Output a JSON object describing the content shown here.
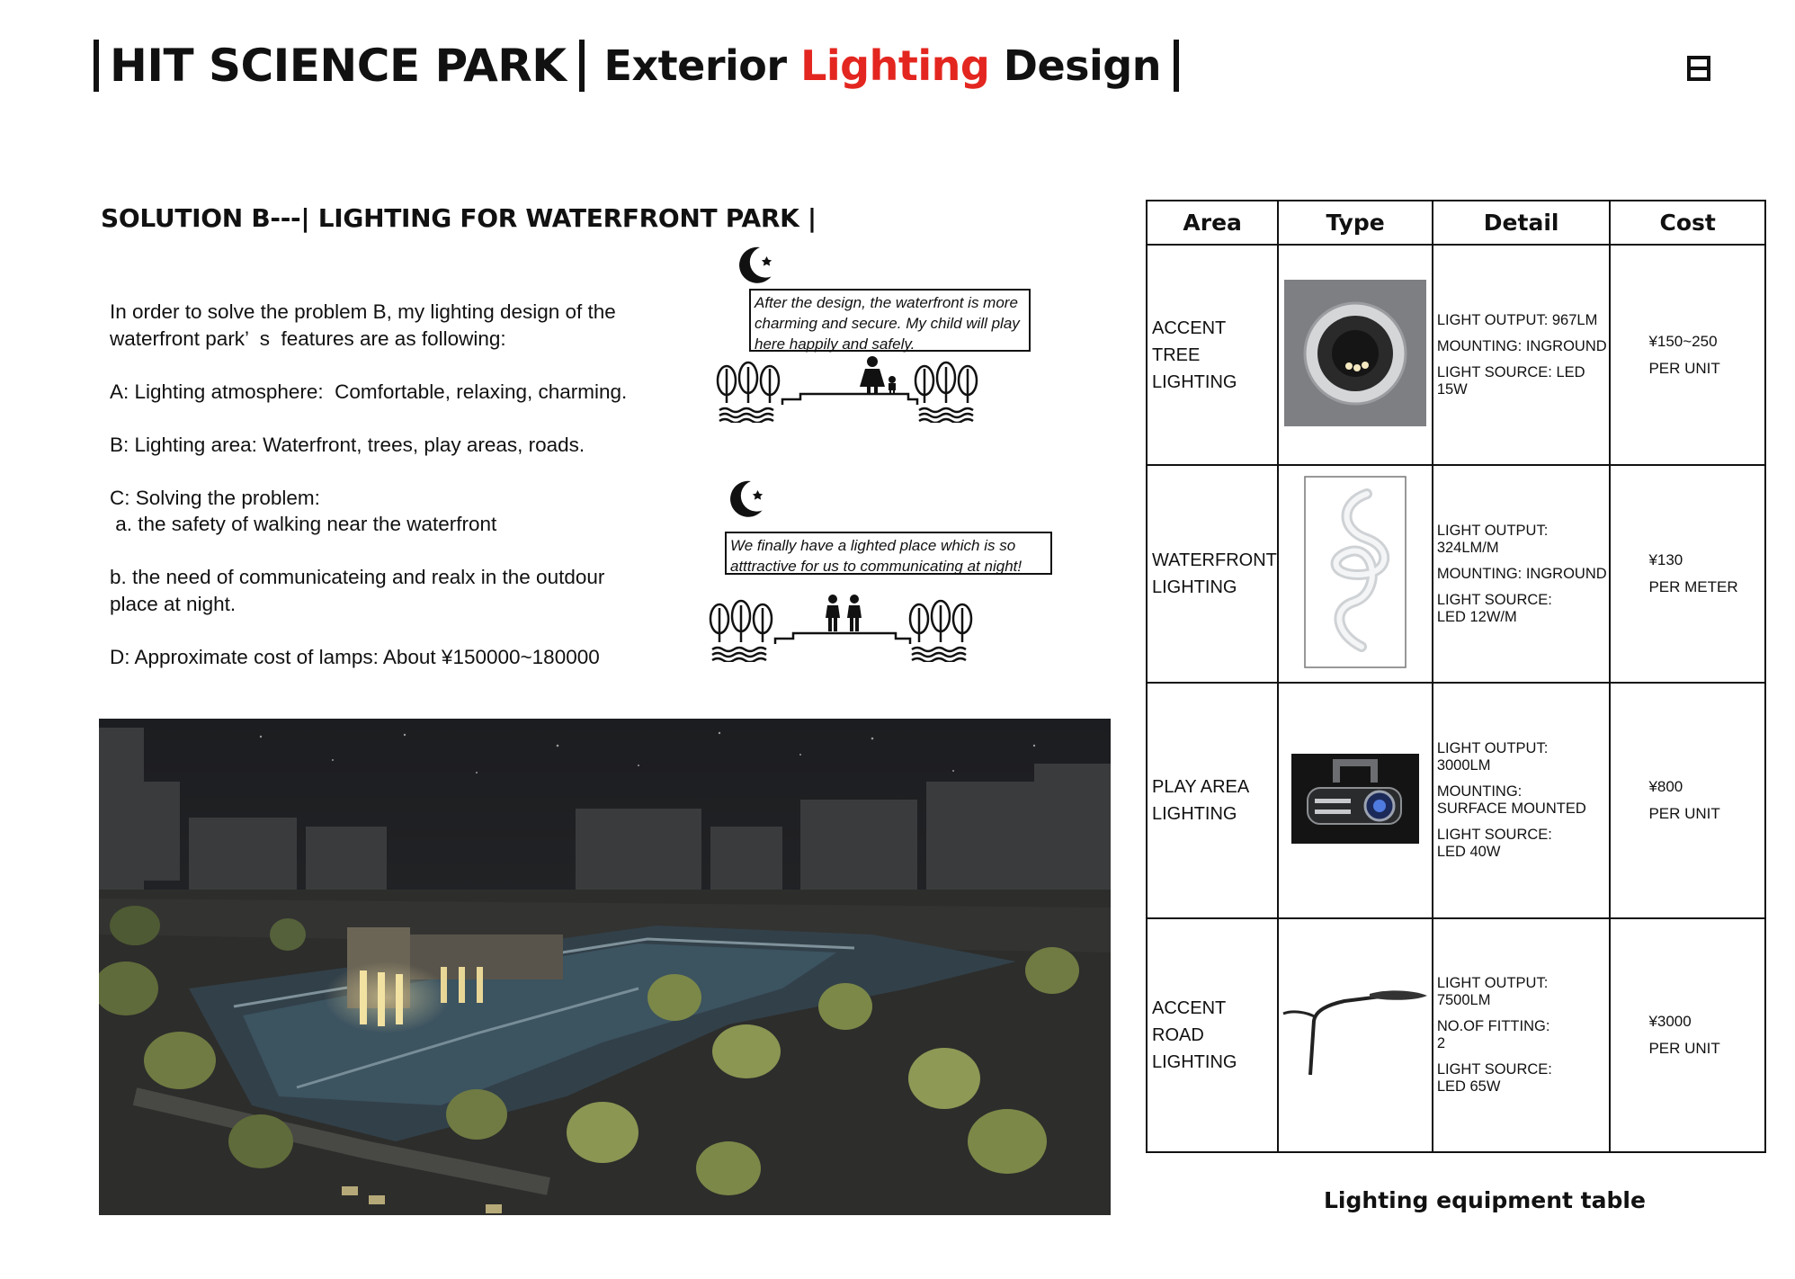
{
  "header": {
    "title_part1": "HIT SCIENCE PARK",
    "title_part2_a": "Exterior ",
    "title_part2_highlight": "Lighting",
    "title_part2_b": " Design",
    "accent_color": "#e3261f",
    "page_marker": "日"
  },
  "section_title": "SOLUTION B---| LIGHTING FOR WATERFRONT PARK |",
  "intro": {
    "line1": "In order to solve the problem B, my lighting design of the",
    "line2": "waterfront park’  s  features are as following:",
    "a": "A: Lighting atmosphere:  Comfortable, relaxing, charming.",
    "b": "B: Lighting area: Waterfront, trees, play areas, roads.",
    "c_title": "C: Solving the problem:",
    "c_a": " a. the safety of walking near the waterfront",
    "c_b1": "b. the need of communicateing and realx in the outdour",
    "c_b2": "place at night.",
    "d": "D: Approximate cost of lamps: About ¥150000~180000"
  },
  "scenes": {
    "scene1_speech": [
      "After the design, the waterfront is more",
      "charming and secure. My child will play",
      "here happily and safely."
    ],
    "scene2_speech": [
      "We finally have a lighted place which is so",
      "atttractive for us to communicating at night!"
    ]
  },
  "equipment_table": {
    "headers": [
      "Area",
      "Type",
      "Detail",
      "Cost"
    ],
    "rows": [
      {
        "area": [
          "ACCENT",
          "TREE LIGHTING"
        ],
        "type_icon": "inground-uplight-icon",
        "detail": [
          [
            "LIGHT OUTPUT: 967LM"
          ],
          [
            "MOUNTING: INGROUND"
          ],
          [
            "LIGHT SOURCE: LED 15W"
          ]
        ],
        "cost": [
          "¥150~250",
          "PER UNIT"
        ]
      },
      {
        "area": [
          "WATERFRONT",
          "LIGHTING"
        ],
        "type_icon": "flexible-led-strip-icon",
        "detail": [
          [
            "LIGHT OUTPUT:",
            "324LM/M"
          ],
          [
            "MOUNTING: INGROUND"
          ],
          [
            "LIGHT SOURCE:",
            "LED 12W/M"
          ]
        ],
        "cost": [
          "¥130",
          "PER METER"
        ]
      },
      {
        "area": [
          "PLAY AREA",
          "LIGHTING"
        ],
        "type_icon": "surface-projector-icon",
        "detail": [
          [
            "LIGHT OUTPUT:",
            "3000LM"
          ],
          [
            "MOUNTING:",
            "SURFACE MOUNTED"
          ],
          [
            "LIGHT SOURCE:",
            "LED 40W"
          ]
        ],
        "cost": [
          "¥800",
          "PER UNIT"
        ]
      },
      {
        "area": [
          "ACCENT ROAD",
          "LIGHTING"
        ],
        "type_icon": "street-light-icon",
        "detail": [
          [
            "LIGHT OUTPUT:",
            "7500LM"
          ],
          [
            "NO.OF FITTING:",
            "2"
          ],
          [
            "LIGHT SOURCE:",
            "LED 65W"
          ]
        ],
        "cost": [
          "¥3000",
          "PER UNIT"
        ]
      }
    ]
  },
  "caption": "Lighting equipment table"
}
